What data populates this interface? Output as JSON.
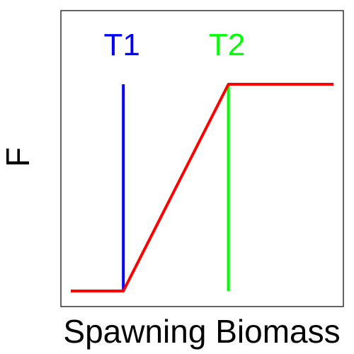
{
  "chart_data": {
    "type": "line",
    "title": "",
    "xlabel": "Spawning Biomass",
    "ylabel": "F",
    "xlim": [
      0,
      10
    ],
    "ylim": [
      0,
      10
    ],
    "grid": false,
    "series": [
      {
        "x": [
          0,
          2,
          6,
          10
        ],
        "y": [
          0,
          0,
          8,
          8
        ],
        "color": "#ff0000"
      }
    ],
    "reference_lines": [
      {
        "label": "T1",
        "x": 2,
        "y_from": 0,
        "y_to": 8,
        "color": "#0000ff"
      },
      {
        "label": "T2",
        "x": 6,
        "y_from": 0,
        "y_to": 8,
        "color": "#00ff00"
      }
    ]
  }
}
